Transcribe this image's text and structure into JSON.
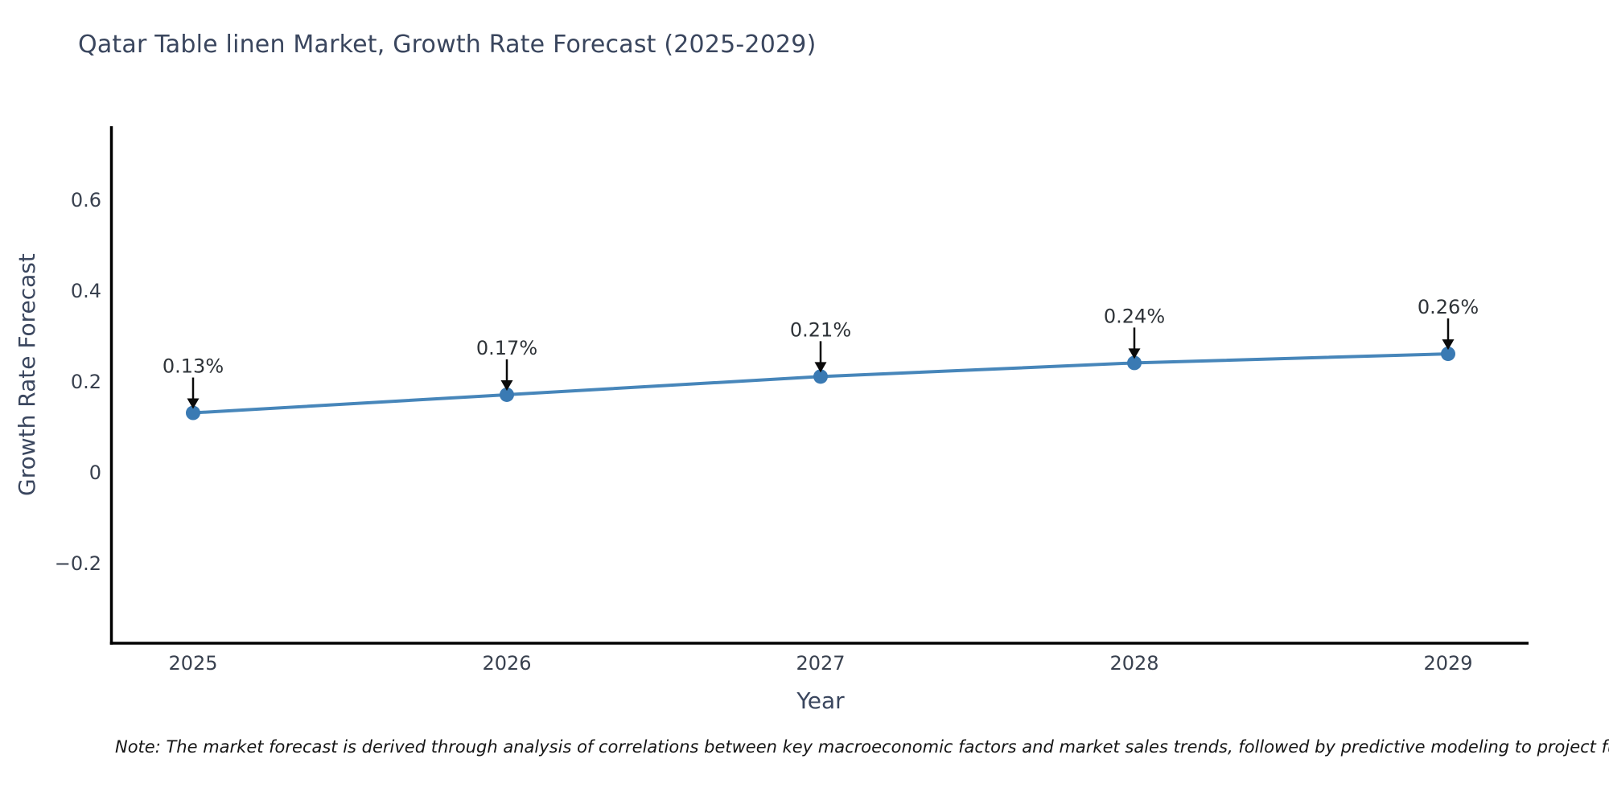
{
  "page": {
    "title": "Qatar Table linen Market, Growth Rate Forecast (2025-2029)",
    "note": "Note: The market forecast is derived through analysis of correlations between key macroeconomic factors and market sales trends, followed by predictive modeling to project future sales"
  },
  "chart_data": {
    "type": "line",
    "title": "Qatar Table linen Market, Growth Rate Forecast (2025-2029)",
    "xlabel": "Year",
    "ylabel": "Growth Rate Forecast",
    "categories": [
      "2025",
      "2026",
      "2027",
      "2028",
      "2029"
    ],
    "values": [
      0.13,
      0.17,
      0.21,
      0.24,
      0.26
    ],
    "point_labels": [
      "0.13%",
      "0.17%",
      "0.21%",
      "0.24%",
      "0.26%"
    ],
    "ytick_values": [
      0.6,
      0.4,
      0.2,
      0,
      -0.2
    ],
    "ytick_labels": [
      "0.6",
      "0.4",
      "0.2",
      "0",
      "−0.2"
    ],
    "ylim": [
      -0.377,
      0.756
    ],
    "grid": false,
    "legend": "none",
    "annotations": "black downward arrows from value labels to markers",
    "colors": {
      "line": "#4786ba",
      "marker": "#3a7ab3",
      "axis": "#000000",
      "tick_text": "#39414f",
      "title_text": "#3a465e",
      "annotation_text": "#2e3338",
      "note_text": "#151515",
      "background": "#ffffff"
    }
  }
}
